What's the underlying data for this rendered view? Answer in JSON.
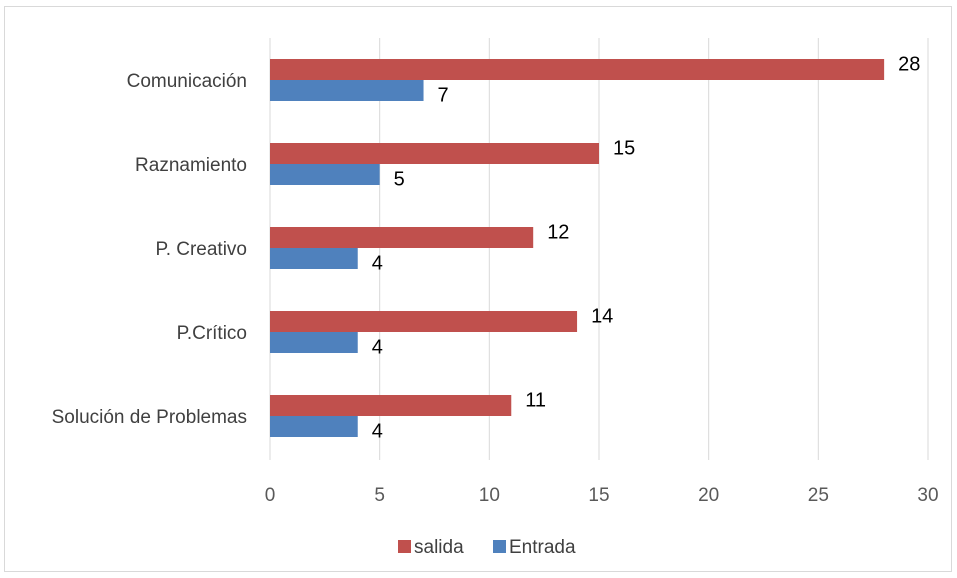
{
  "chart_data": {
    "type": "bar",
    "orientation": "horizontal",
    "title": "",
    "xlabel": "",
    "ylabel": "",
    "categories": [
      "Comunicación",
      "Raznamiento",
      "P. Creativo",
      "P.Crítico",
      "Solución de Problemas"
    ],
    "series": [
      {
        "name": "salida",
        "color": "#c0504d",
        "values": [
          28,
          15,
          12,
          14,
          11
        ]
      },
      {
        "name": "Entrada",
        "color": "#4f81bd",
        "values": [
          7,
          5,
          4,
          4,
          4
        ]
      }
    ],
    "xlim": [
      0,
      30
    ],
    "xticks": [
      0,
      5,
      10,
      15,
      20,
      25,
      30
    ],
    "grid": "vertical",
    "legend_position": "bottom",
    "data_labels": true
  }
}
